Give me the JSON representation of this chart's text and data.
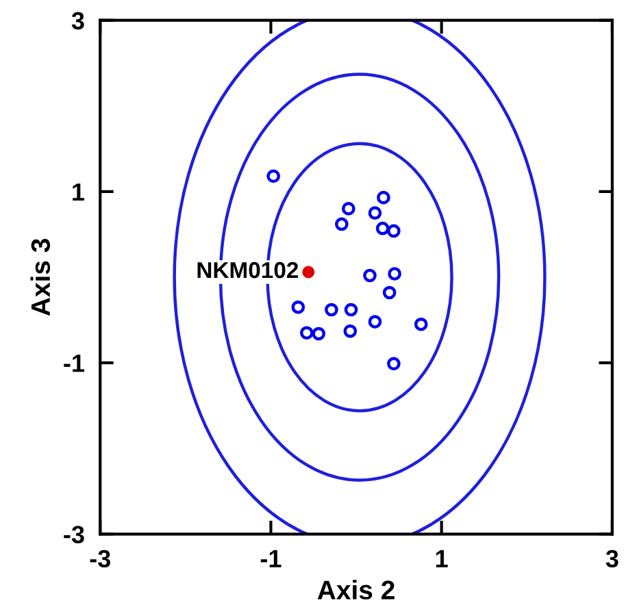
{
  "chart_data": {
    "type": "scatter",
    "xlabel": "Axis 2",
    "ylabel": "Axis 3",
    "xlim": [
      -3,
      3
    ],
    "ylim": [
      -3,
      3
    ],
    "xticks": [
      -3,
      -1,
      1,
      3
    ],
    "yticks": [
      -3,
      -1,
      1,
      3
    ],
    "grid": false,
    "legend": false,
    "series": [
      {
        "marker": "circle",
        "color": "#0000ee",
        "x": [
          -0.97,
          0.32,
          -0.09,
          0.22,
          -0.17,
          0.31,
          0.44,
          0.16,
          0.45,
          0.39,
          -0.68,
          -0.29,
          -0.06,
          0.22,
          0.76,
          -0.58,
          -0.44,
          -0.07,
          0.44
        ],
        "values": [
          1.18,
          0.93,
          0.8,
          0.75,
          0.62,
          0.57,
          0.54,
          0.02,
          0.04,
          -0.18,
          -0.35,
          -0.38,
          -0.38,
          -0.52,
          -0.55,
          -0.65,
          -0.66,
          -0.63,
          -1.01
        ]
      },
      {
        "marker": "circle",
        "color": "#e00000",
        "x": [
          -0.56
        ],
        "values": [
          0.06
        ]
      }
    ],
    "annotations": [
      {
        "text": "NKM0102",
        "x": -0.56,
        "y": 0.06
      }
    ]
  }
}
